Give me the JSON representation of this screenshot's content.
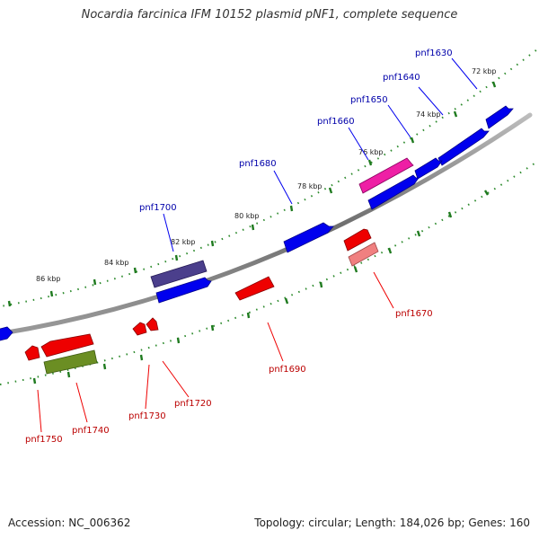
{
  "title": "Nocardia farcinica IFM 10152 plasmid pNF1, complete sequence",
  "footer": {
    "accession": "Accession: NC_006362",
    "summary": "Topology: circular; Length: 184,026 bp; Genes: 160"
  },
  "colors": {
    "forward_gene": "#0000ee",
    "reverse_gene": "#ee0000",
    "forward_label": "#0000aa",
    "reverse_label": "#bb0000",
    "backbone": "#777777",
    "ticks": "#228b22"
  },
  "tick_labels": [
    "72 kbp",
    "74 kbp",
    "76 kbp",
    "78 kbp",
    "80 kbp",
    "82 kbp",
    "84 kbp",
    "86 kbp"
  ],
  "forward_genes": [
    "pnf1630",
    "pnf1640",
    "pnf1650",
    "pnf1660",
    "pnf1680",
    "pnf1700"
  ],
  "reverse_genes": [
    "pnf1670",
    "pnf1690",
    "pnf1720",
    "pnf1730",
    "pnf1740",
    "pnf1750"
  ]
}
